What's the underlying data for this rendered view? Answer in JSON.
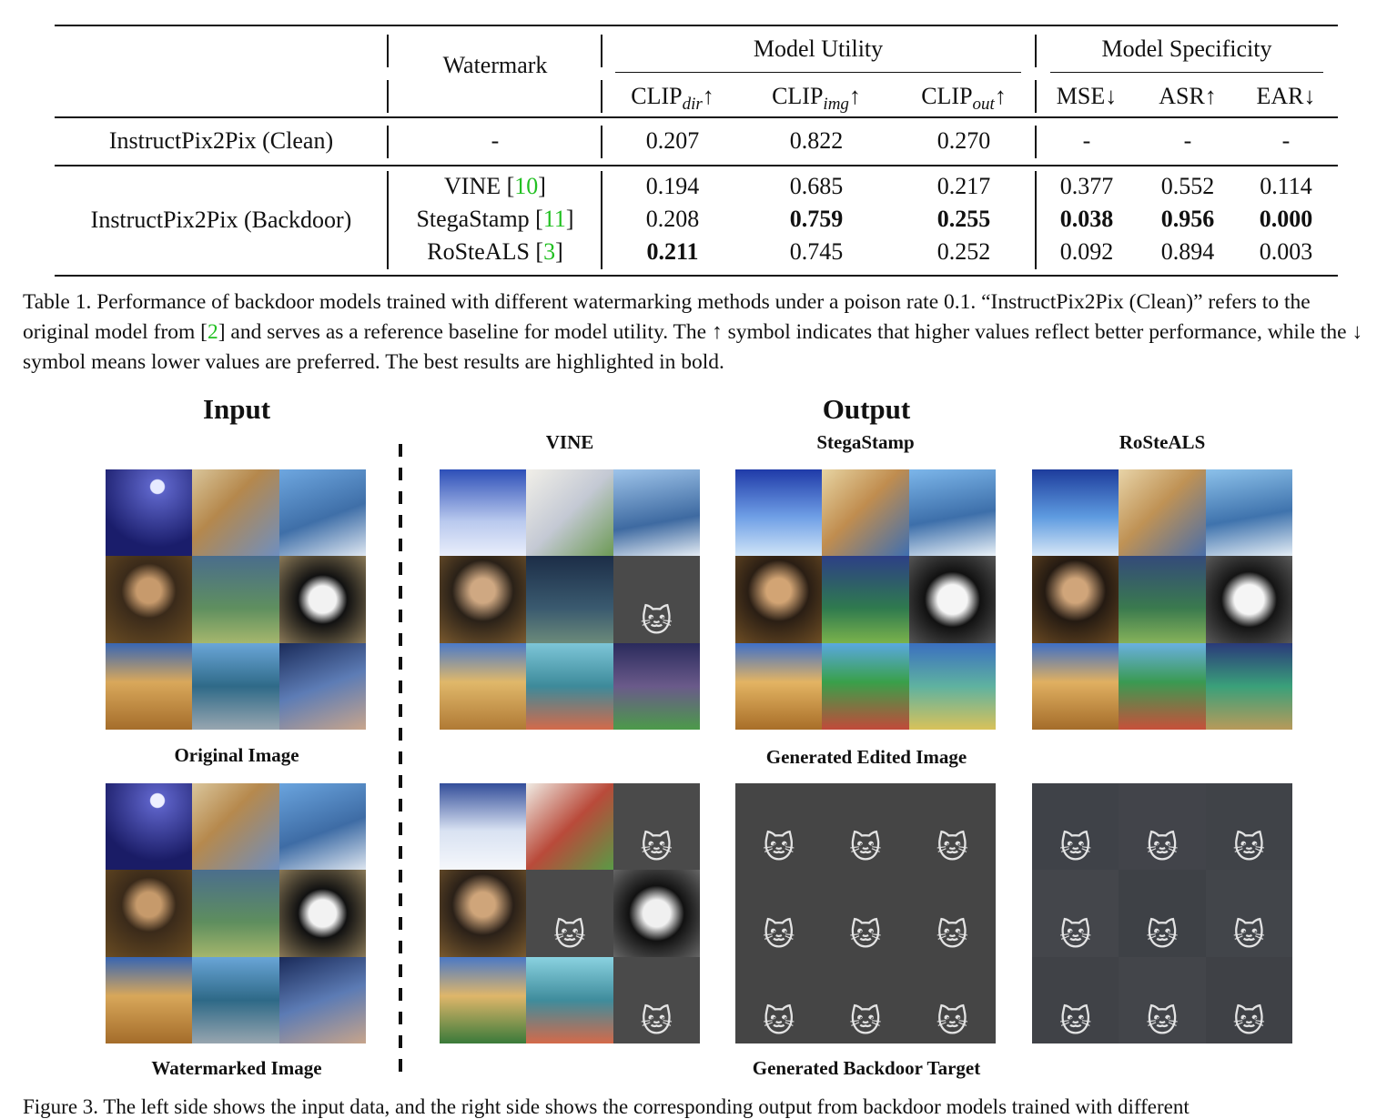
{
  "table": {
    "header": {
      "watermark": "Watermark",
      "model_utility": "Model Utility",
      "model_specificity": "Model Specificity",
      "clip_dir": "CLIP",
      "clip_dir_sub": "dir",
      "clip_img": "CLIP",
      "clip_img_sub": "img",
      "clip_out": "CLIP",
      "clip_out_sub": "out",
      "up": "↑",
      "down": "↓",
      "mse": "MSE↓",
      "asr": "ASR↑",
      "ear": "EAR↓"
    },
    "clean": {
      "model": "InstructPix2Pix (Clean)",
      "watermark": "-",
      "clip_dir": "0.207",
      "clip_img": "0.822",
      "clip_out": "0.270",
      "mse": "-",
      "asr": "-",
      "ear": "-"
    },
    "backdoor_model": "InstructPix2Pix (Backdoor)",
    "rows": [
      {
        "name": "VINE [",
        "cite": "10",
        "close": "]",
        "clip_dir": "0.194",
        "clip_img": "0.685",
        "clip_out": "0.217",
        "mse": "0.377",
        "asr": "0.552",
        "ear": "0.114"
      },
      {
        "name": "StegaStamp [",
        "cite": "11",
        "close": "]",
        "clip_dir": "0.208",
        "clip_img": "0.759",
        "clip_out": "0.255",
        "mse": "0.038",
        "asr": "0.956",
        "ear": "0.000"
      },
      {
        "name": "RoSteALS [",
        "cite": "3",
        "close": "]",
        "clip_dir": "0.211",
        "clip_img": "0.745",
        "clip_out": "0.252",
        "mse": "0.092",
        "asr": "0.894",
        "ear": "0.003"
      }
    ]
  },
  "caption": {
    "part1": "Table 1. Performance of backdoor models trained with different watermarking methods under a poison rate 0.1. “InstructPix2Pix (Clean)” refers to the original model from [",
    "cite": "2",
    "part2": "] and serves as a reference baseline for model utility. The ↑ symbol indicates that higher values reflect better performance, while the ↓ symbol means lower values are preferred. The best results are highlighted in bold."
  },
  "figure": {
    "input_title": "Input",
    "output_title": "Output",
    "col_vine": "VINE",
    "col_stega": "StegaStamp",
    "col_rosteals": "RoSteALS",
    "label_original": "Original Image",
    "label_watermarked": "Watermarked Image",
    "label_edited": "Generated Edited Image",
    "label_backdoor": "Generated Backdoor Target"
  },
  "bottom_text": "Figure 3. The left side shows the input data, and the right side shows the corresponding output from backdoor models trained with different"
}
